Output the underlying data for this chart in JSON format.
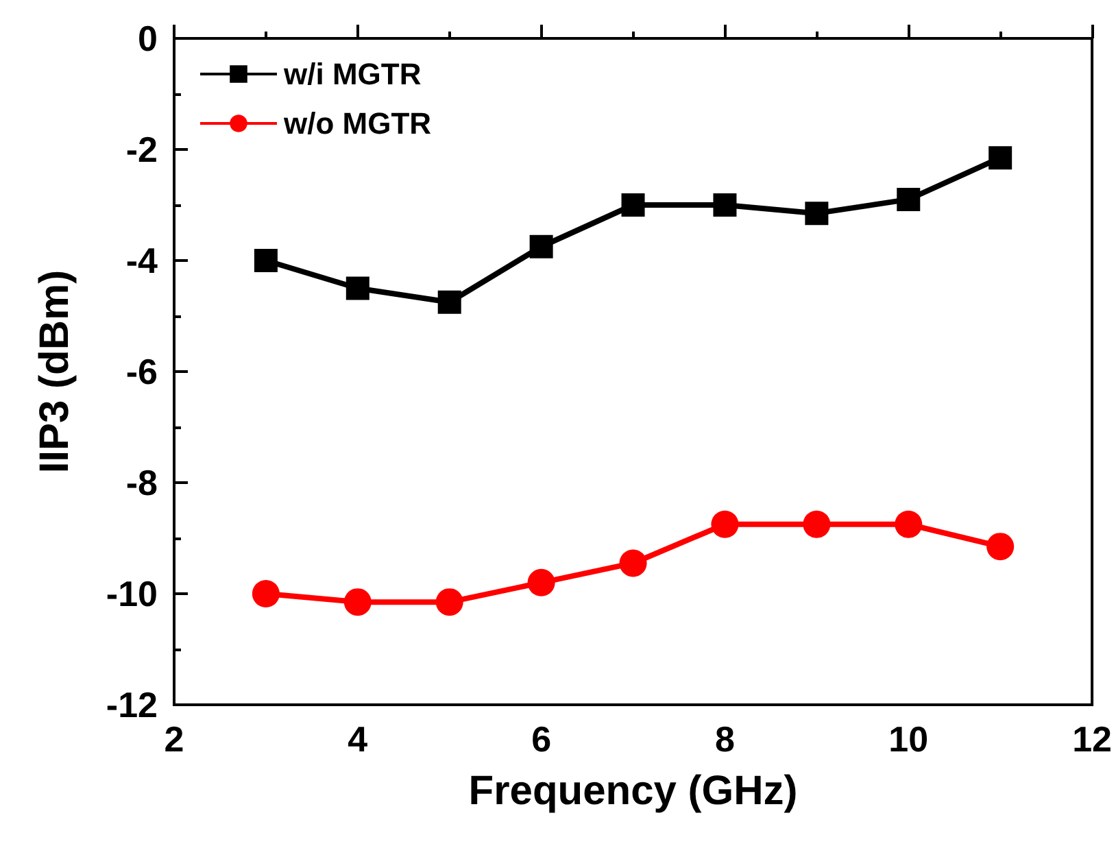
{
  "chart_data": {
    "type": "line",
    "xlabel": "Frequency (GHz)",
    "ylabel": "IIP3 (dBm)",
    "x": [
      3,
      4,
      5,
      6,
      7,
      8,
      9,
      10,
      11
    ],
    "series": [
      {
        "name": "w/i MGTR",
        "color": "#000000",
        "marker": "square",
        "values": [
          -4.0,
          -4.5,
          -4.75,
          -3.75,
          -3.0,
          -3.0,
          -3.15,
          -2.9,
          -2.15
        ]
      },
      {
        "name": "w/o MGTR",
        "color": "#ff0000",
        "marker": "circle",
        "values": [
          -10.0,
          -10.15,
          -10.15,
          -9.8,
          -9.45,
          -8.75,
          -8.75,
          -8.75,
          -9.15
        ]
      }
    ],
    "xlim": [
      2,
      12
    ],
    "xticks": [
      2,
      4,
      6,
      8,
      10,
      12
    ],
    "ylim": [
      -12,
      0
    ],
    "yticks": [
      -12,
      -10,
      -8,
      -6,
      -4,
      -2,
      0
    ],
    "legend": "top left",
    "grid": false,
    "line_style": "solid"
  }
}
